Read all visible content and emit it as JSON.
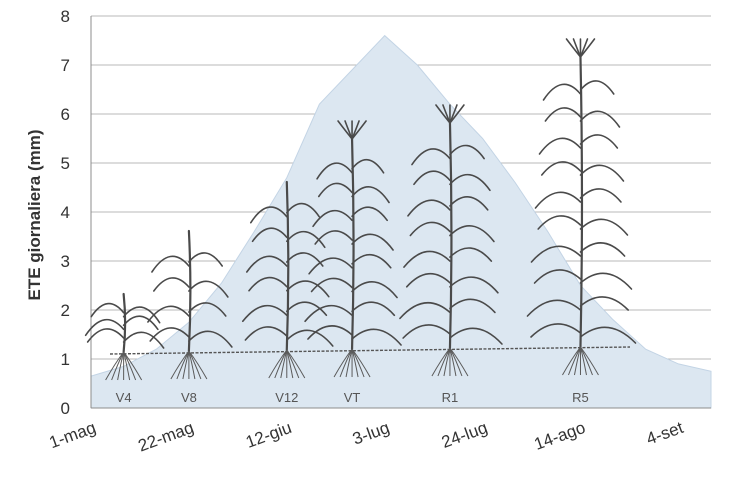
{
  "chart_data": {
    "type": "area",
    "ylabel": "ETE giornaliera (mm)",
    "xlabel": "",
    "ylim": [
      0,
      8
    ],
    "yticks": [
      0,
      1,
      2,
      3,
      4,
      5,
      6,
      7,
      8
    ],
    "x_tick_labels": [
      "1-mag",
      "22-mag",
      "12-giu",
      "3-lug",
      "24-lug",
      "14-ago",
      "4-set"
    ],
    "grid": true,
    "colors": {
      "area": "#dce7f1",
      "area_edge": "#c3d4e5",
      "grid": "#b8b8b8"
    },
    "series": [
      {
        "x": [
          "1-mag",
          "8-mag",
          "15-mag",
          "22-mag",
          "29-mag",
          "5-giu",
          "12-giu",
          "19-giu",
          "26-giu",
          "3-lug",
          "10-lug",
          "17-lug",
          "24-lug",
          "31-lug",
          "7-ago",
          "14-ago",
          "21-ago",
          "28-ago",
          "4-set",
          "11-set"
        ],
        "values": [
          0.65,
          0.85,
          1.2,
          1.75,
          2.55,
          3.6,
          4.7,
          6.2,
          6.9,
          7.6,
          7.0,
          6.2,
          5.5,
          4.6,
          3.6,
          2.5,
          1.8,
          1.2,
          0.9,
          0.75
        ]
      }
    ],
    "growth_stages": [
      {
        "label": "V4",
        "date": "8-mag"
      },
      {
        "label": "V8",
        "date": "22-mag"
      },
      {
        "label": "V12",
        "date": "12-giu"
      },
      {
        "label": "VT",
        "date": "26-giu"
      },
      {
        "label": "R1",
        "date": "17-lug"
      },
      {
        "label": "R5",
        "date": "14-ago"
      }
    ]
  }
}
